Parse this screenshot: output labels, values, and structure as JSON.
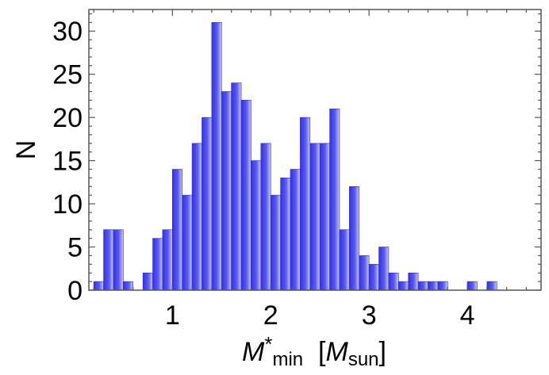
{
  "chart_data": {
    "type": "bar",
    "title": "",
    "xlabel": {
      "main": "M",
      "star": "*",
      "sub": "min",
      "bracket_open": "[",
      "unit_main": "M",
      "unit_sub": "sun",
      "bracket_close": "]"
    },
    "ylabel": "N",
    "xlim": [
      0.15,
      4.75
    ],
    "ylim": [
      0,
      32.5
    ],
    "xticks": [
      1,
      2,
      3,
      4
    ],
    "yticks": [
      0,
      5,
      10,
      15,
      20,
      25,
      30
    ],
    "bin_width": 0.1,
    "bin_starts": [
      0.2,
      0.3,
      0.4,
      0.5,
      0.6,
      0.7,
      0.8,
      0.9,
      1.0,
      1.1,
      1.2,
      1.3,
      1.4,
      1.5,
      1.6,
      1.7,
      1.8,
      1.9,
      2.0,
      2.1,
      2.2,
      2.3,
      2.4,
      2.5,
      2.6,
      2.7,
      2.8,
      2.9,
      3.0,
      3.1,
      3.2,
      3.3,
      3.4,
      3.5,
      3.6,
      3.7,
      3.8,
      3.9,
      4.0,
      4.1,
      4.2,
      4.3,
      4.4,
      4.5
    ],
    "values": [
      1,
      7,
      7,
      1,
      0,
      2,
      6,
      7,
      14,
      11,
      17,
      20,
      31,
      23,
      24,
      22,
      15,
      17,
      11,
      13,
      14,
      20,
      17,
      17,
      21,
      7,
      12,
      4,
      3,
      5,
      2,
      1,
      2,
      1,
      1,
      1,
      0,
      0,
      1,
      0,
      1,
      0,
      0,
      0
    ],
    "bar_color": "#5050ee",
    "bar_gradient": [
      "#3232e8",
      "#c8c8fa"
    ],
    "grid": false,
    "legend": "none"
  }
}
